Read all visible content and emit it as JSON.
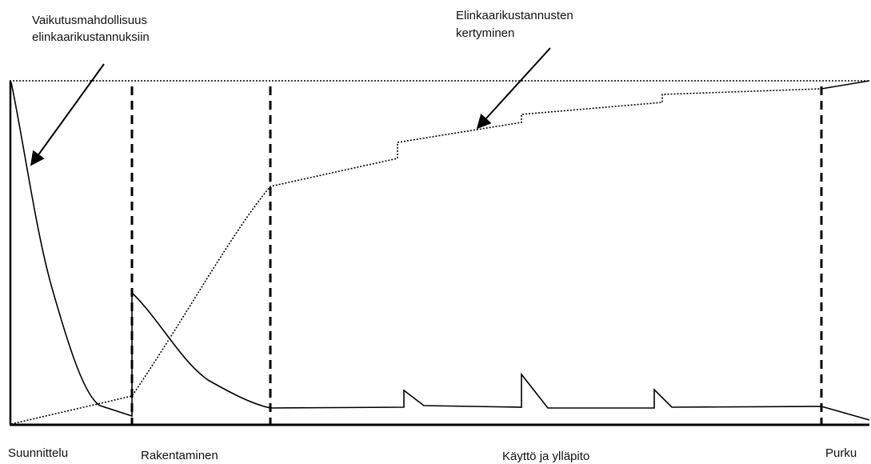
{
  "annotations": [
    {
      "lines": [
        "Vaikutusmahdollisuus",
        "elinkaarikustannuksiin"
      ]
    },
    {
      "lines": [
        "Elinkaarikustannusten",
        "kertyminen"
      ]
    }
  ],
  "phases": [
    "Suunnittelu",
    "Rakentaminen",
    "Käyttö ja ylläpito",
    "Purku"
  ]
}
